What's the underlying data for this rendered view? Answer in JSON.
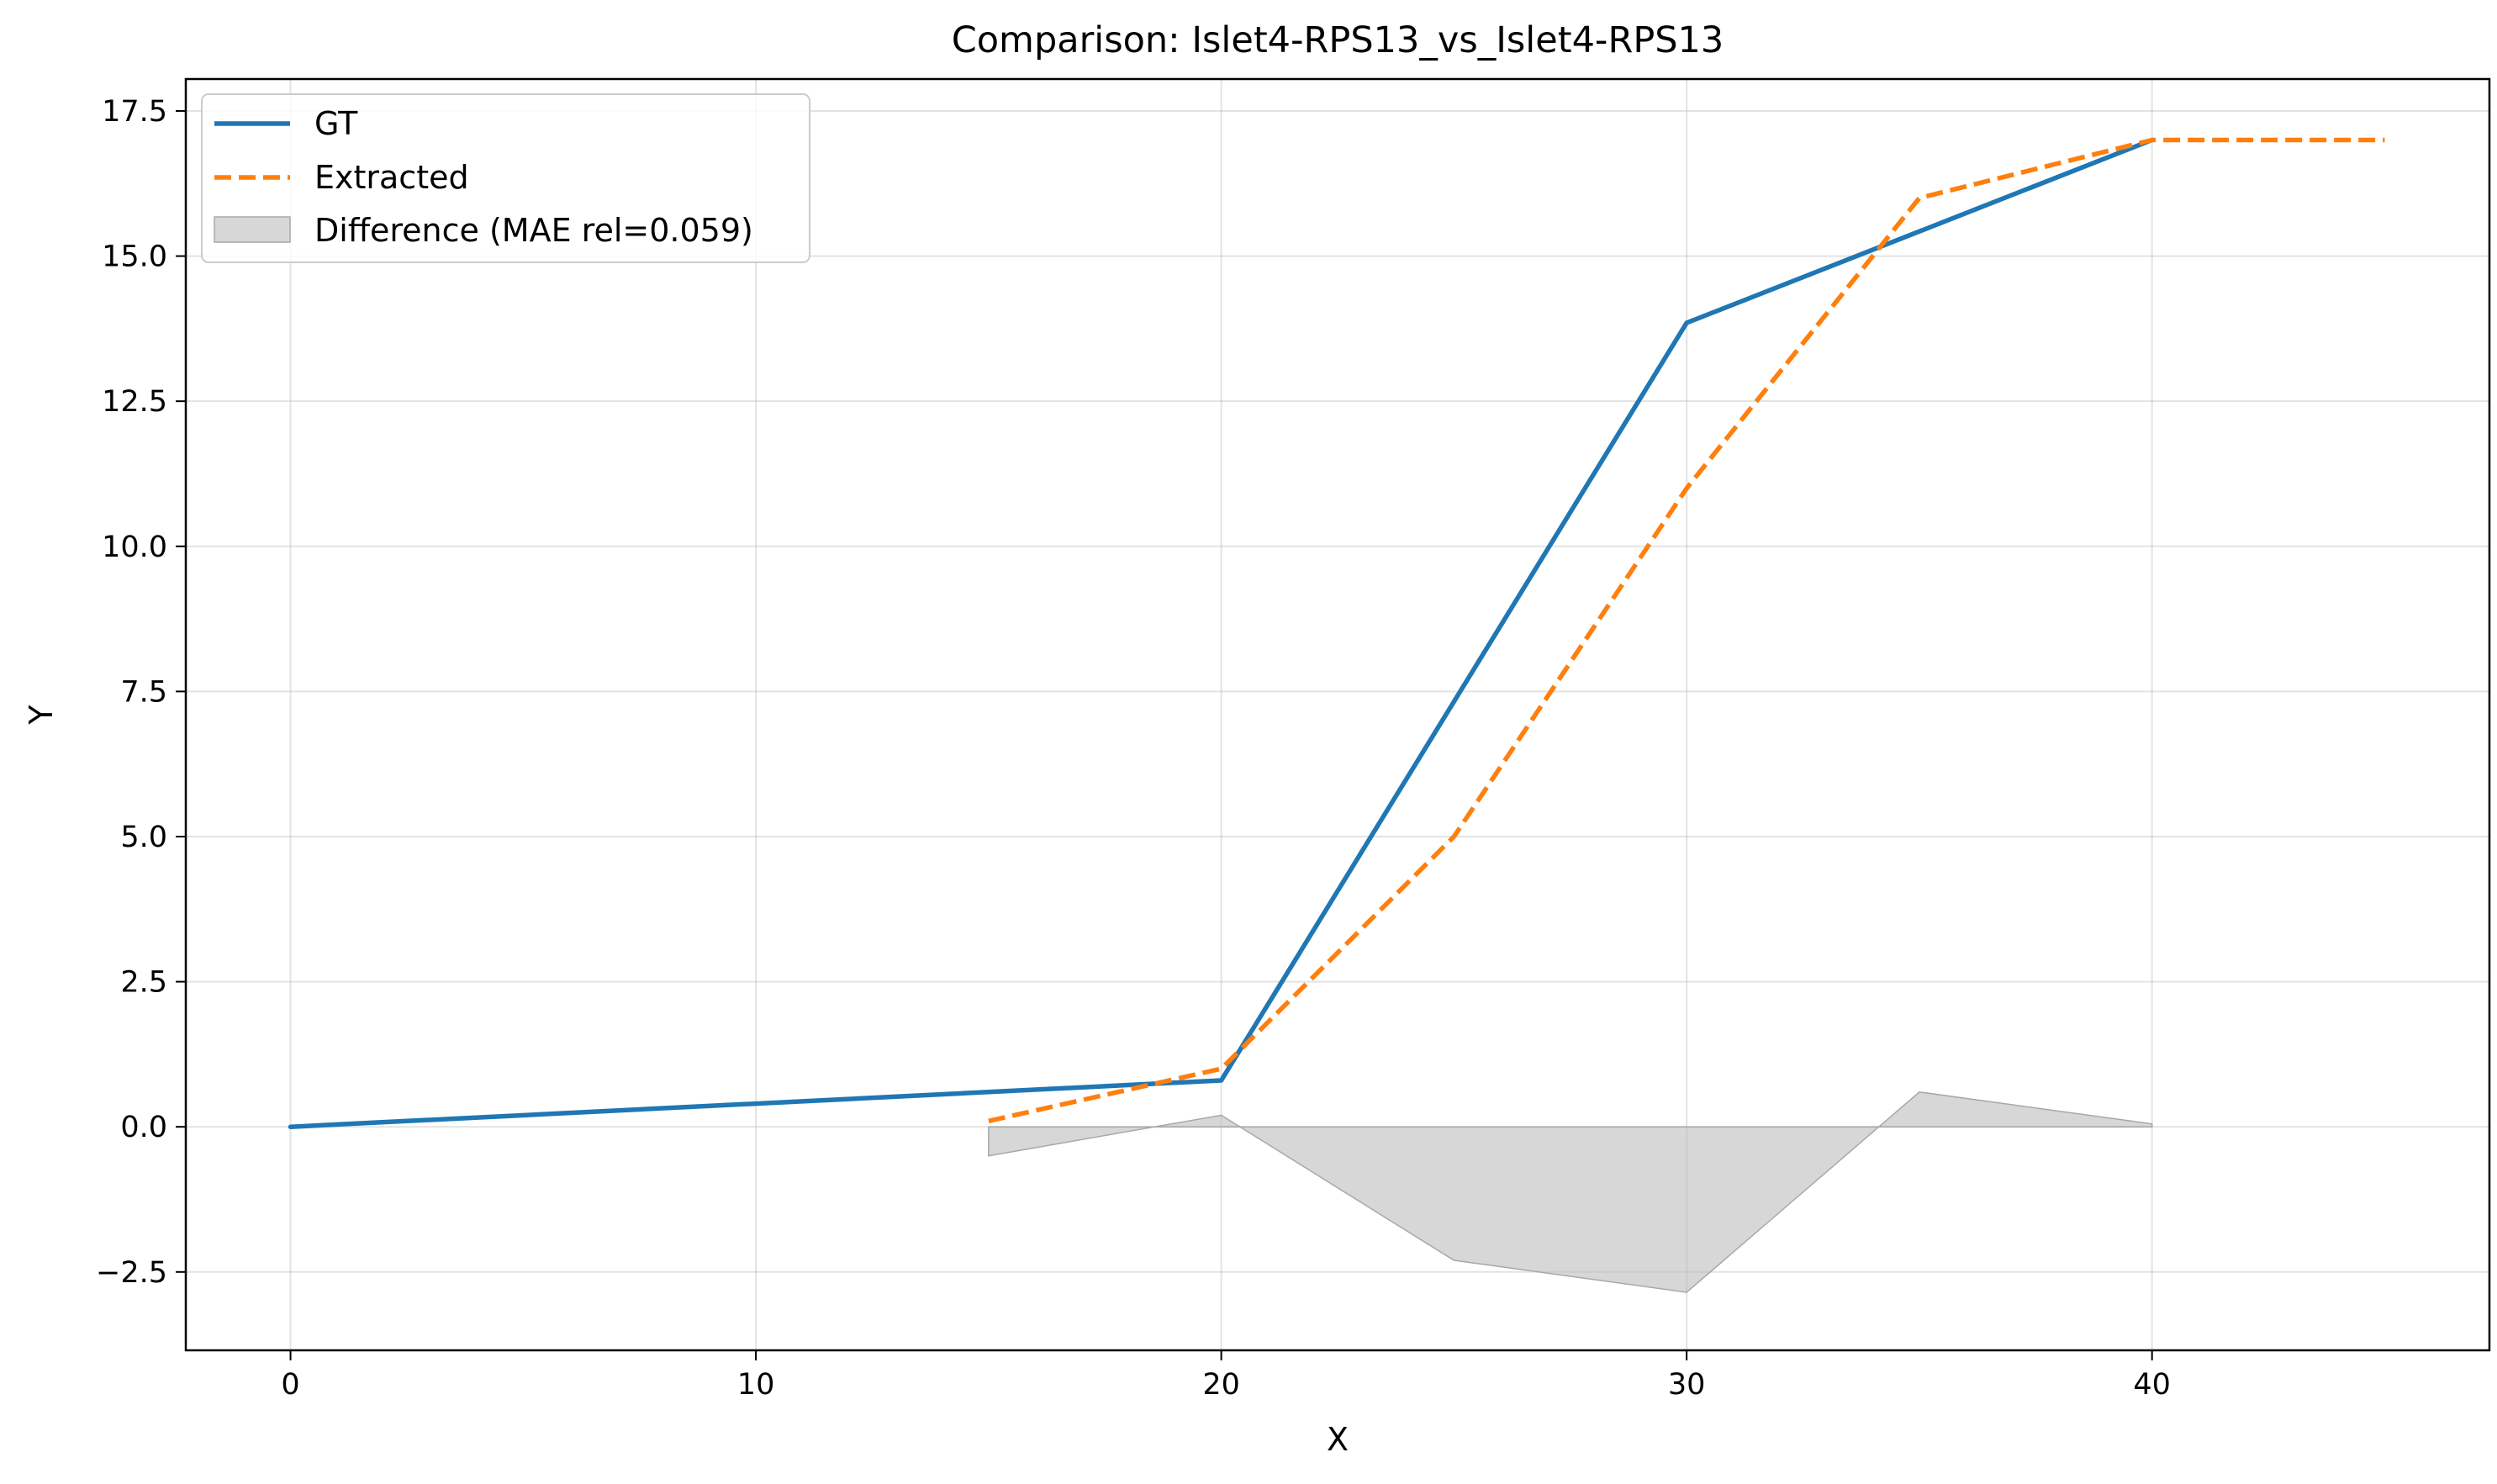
{
  "chart_data": {
    "type": "line",
    "title": "Comparison: Islet4-RPS13_vs_Islet4-RPS13",
    "xlabel": "X",
    "ylabel": "Y",
    "xlim": [
      -2.25,
      47.25
    ],
    "ylim": [
      -3.85,
      18.05
    ],
    "x_ticks": [
      0,
      10,
      20,
      30,
      40
    ],
    "y_ticks": [
      -2.5,
      0.0,
      2.5,
      5.0,
      7.5,
      10.0,
      12.5,
      15.0,
      17.5
    ],
    "y_tick_labels": [
      "−2.5",
      "0.0",
      "2.5",
      "5.0",
      "7.5",
      "10.0",
      "12.5",
      "15.0",
      "17.5"
    ],
    "grid": true,
    "legend_position": "top-left",
    "series": [
      {
        "name": "GT",
        "style": "solid",
        "color": "#1f77b4",
        "x": [
          0,
          20,
          30,
          40
        ],
        "y": [
          0.0,
          0.8,
          13.85,
          17.0
        ]
      },
      {
        "name": "Extracted",
        "style": "dashed",
        "color": "#ff7f0e",
        "x": [
          15,
          20,
          25,
          30,
          35,
          40,
          45
        ],
        "y": [
          0.1,
          1.0,
          5.0,
          11.0,
          16.0,
          17.0,
          17.0
        ]
      }
    ],
    "difference": {
      "name": "Difference (MAE rel=0.059)",
      "color": "#bdbdbd",
      "x": [
        15,
        20,
        25,
        30,
        35,
        40
      ],
      "y": [
        -0.5,
        0.2,
        -2.3,
        -2.85,
        0.6,
        0.05
      ]
    }
  }
}
